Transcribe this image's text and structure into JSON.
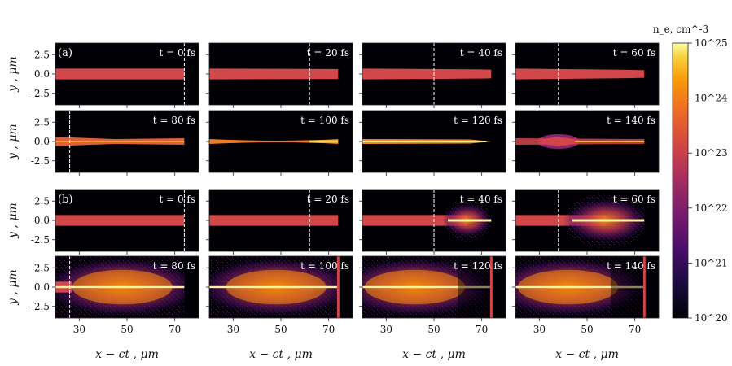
{
  "chart_data": {
    "type": "heatmap",
    "colorbar": {
      "label": "n_e, cm^-3",
      "ticks": [
        "10^20",
        "10^21",
        "10^22",
        "10^23",
        "10^24",
        "10^25"
      ],
      "range_log10": [
        20,
        25
      ],
      "colormap": "inferno"
    },
    "xlabel": "x − ct , μm",
    "ylabel": "y , μm",
    "x_ticks": [
      30,
      50,
      70
    ],
    "xlim": [
      20,
      80
    ],
    "y_ticks": [
      2.5,
      0.0,
      -2.5
    ],
    "y_tick_labels": [
      "2.5",
      "0.0",
      "-2.5"
    ],
    "ylim": [
      -4,
      4
    ],
    "groups": [
      {
        "label": "(a)",
        "panels": [
          {
            "t": "t = 0 fs",
            "t_value": 0,
            "marker_x": 74
          },
          {
            "t": "t = 20 fs",
            "t_value": 20,
            "marker_x": 62
          },
          {
            "t": "t = 40 fs",
            "t_value": 40,
            "marker_x": 50
          },
          {
            "t": "t = 60 fs",
            "t_value": 60,
            "marker_x": 38
          },
          {
            "t": "t = 80 fs",
            "t_value": 80,
            "marker_x": 26
          },
          {
            "t": "t = 100 fs",
            "t_value": 100,
            "marker_x": null
          },
          {
            "t": "t = 120 fs",
            "t_value": 120,
            "marker_x": null
          },
          {
            "t": "t = 140 fs",
            "t_value": 140,
            "marker_x": null
          }
        ]
      },
      {
        "label": "(b)",
        "panels": [
          {
            "t": "t = 0 fs",
            "t_value": 0,
            "marker_x": 74
          },
          {
            "t": "t = 20 fs",
            "t_value": 20,
            "marker_x": 62
          },
          {
            "t": "t = 40 fs",
            "t_value": 40,
            "marker_x": 50
          },
          {
            "t": "t = 60 fs",
            "t_value": 60,
            "marker_x": 38
          },
          {
            "t": "t = 80 fs",
            "t_value": 80,
            "marker_x": 26
          },
          {
            "t": "t = 100 fs",
            "t_value": 100,
            "marker_x": null
          },
          {
            "t": "t = 120 fs",
            "t_value": 120,
            "marker_x": null
          },
          {
            "t": "t = 140 fs",
            "t_value": 140,
            "marker_x": null
          }
        ]
      }
    ]
  }
}
